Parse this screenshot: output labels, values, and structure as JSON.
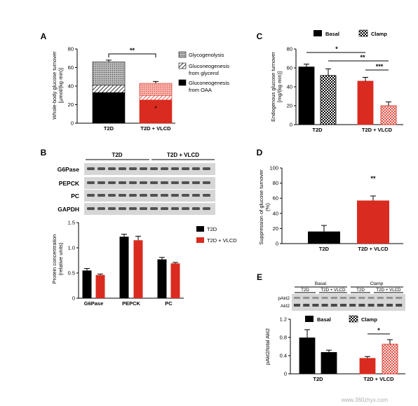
{
  "figure": {
    "panels": {
      "A": "A",
      "B": "B",
      "C": "C",
      "D": "D",
      "E": "E"
    },
    "colors": {
      "black": "#000000",
      "red": "#d92b1f",
      "red_light": "#f2a49c",
      "grey_dots": "#888888",
      "blot_bg": "#d6d6d6",
      "blot_band": "#3a3a3a"
    },
    "watermark": "www.360zhyx.com"
  },
  "chart_data": [
    {
      "id": "A",
      "type": "bar",
      "stacked": true,
      "categories": [
        "T2D",
        "T2D + VLCD"
      ],
      "ylabel": "Whole-body glucose turnover\n[µmol/(kg·min)]",
      "ylim": [
        0,
        80
      ],
      "yticks": [
        0,
        20,
        40,
        60,
        80
      ],
      "series": [
        {
          "name": "Gluconeogenesis from OAA",
          "values": [
            33,
            25
          ],
          "errors": [
            0,
            2
          ],
          "pattern": "solid"
        },
        {
          "name": "Gluconeogenesis from glycerol",
          "values": [
            8,
            5
          ],
          "errors": [
            0,
            0
          ],
          "pattern": "hatch"
        },
        {
          "name": "Glycogenolysis",
          "values": [
            25,
            13
          ],
          "errors": [
            2,
            2
          ],
          "pattern": "dots"
        }
      ],
      "significance": [
        {
          "label": "**",
          "from": 0,
          "to": 1
        },
        {
          "label": "*",
          "on": 1,
          "series": 0
        }
      ],
      "legend": [
        "Glycogenolysis",
        "Gluconeogenesis\nfrom glycerol",
        "Gluconeogenesis\nfrom OAA"
      ]
    },
    {
      "id": "C",
      "type": "bar",
      "categories": [
        "T2D",
        "T2D + VLCD"
      ],
      "ylabel": "Endogenous glucose turnover\n[mg/(kg·min)]",
      "ylim": [
        0,
        80
      ],
      "yticks": [
        0,
        20,
        40,
        60,
        80
      ],
      "series": [
        {
          "name": "Basal",
          "values": [
            61,
            46
          ],
          "errors": [
            3,
            4
          ]
        },
        {
          "name": "Clamp",
          "values": [
            52,
            20
          ],
          "errors": [
            7,
            4
          ]
        }
      ],
      "significance": [
        {
          "label": "*",
          "from": "T2D-Basal",
          "to": "T2D+VLCD-Basal"
        },
        {
          "label": "**",
          "from": "T2D-Clamp",
          "to": "T2D+VLCD-Clamp"
        },
        {
          "label": "***",
          "from": "T2D+VLCD-Basal",
          "to": "T2D+VLCD-Clamp"
        }
      ]
    },
    {
      "id": "B",
      "type": "bar",
      "categories": [
        "G6Pase",
        "PEPCK",
        "PC"
      ],
      "ylabel": "Protein concentration\n(relative units)",
      "ylim": [
        0,
        1.5
      ],
      "yticks": [
        "0",
        "0.5",
        "1.0",
        "1.5"
      ],
      "series": [
        {
          "name": "T2D",
          "values": [
            0.55,
            1.22,
            0.77
          ],
          "errors": [
            0.04,
            0.05,
            0.04
          ]
        },
        {
          "name": "T2D + VLCD",
          "values": [
            0.46,
            1.15,
            0.69
          ],
          "errors": [
            0.02,
            0.08,
            0.02
          ]
        }
      ],
      "blot": {
        "groups": [
          "T2D",
          "T2D + VLCD"
        ],
        "rows": [
          "G6Pase",
          "PEPCK",
          "PC",
          "GAPDH"
        ]
      }
    },
    {
      "id": "D",
      "type": "bar",
      "categories": [
        "T2D",
        "T2D + VLCD"
      ],
      "ylabel": "Suppression of glucose turnover\n(%)",
      "ylim": [
        0,
        100
      ],
      "yticks": [
        0,
        20,
        40,
        60,
        80,
        100
      ],
      "series": [
        {
          "name": "Suppression",
          "values": [
            16,
            57
          ],
          "errors": [
            8,
            6
          ]
        }
      ],
      "significance": [
        {
          "label": "**",
          "on": 1
        }
      ]
    },
    {
      "id": "E",
      "type": "bar",
      "categories": [
        "T2D",
        "T2D + VLCD"
      ],
      "ylabel": "pAkt2/total Akt2",
      "ylim": [
        0,
        1.2
      ],
      "yticks": [
        "0",
        "0.4",
        "0.8",
        "1.2"
      ],
      "series": [
        {
          "name": "Basal",
          "values": [
            0.79,
            0.34
          ],
          "errors": [
            0.18,
            0.04
          ]
        },
        {
          "name": "Clamp",
          "values": [
            0.47,
            0.65
          ],
          "errors": [
            0.05,
            0.1
          ]
        }
      ],
      "significance": [
        {
          "label": "*",
          "from": "T2D+VLCD-Basal",
          "to": "T2D+VLCD-Clamp"
        }
      ],
      "blot": {
        "conditions": [
          "Basal",
          "Clamp"
        ],
        "groups": [
          "T2D",
          "T2D + VLCD",
          "T2D",
          "T2D + VLCD"
        ],
        "rows": [
          "pAkt2",
          "Akt2"
        ]
      }
    }
  ]
}
